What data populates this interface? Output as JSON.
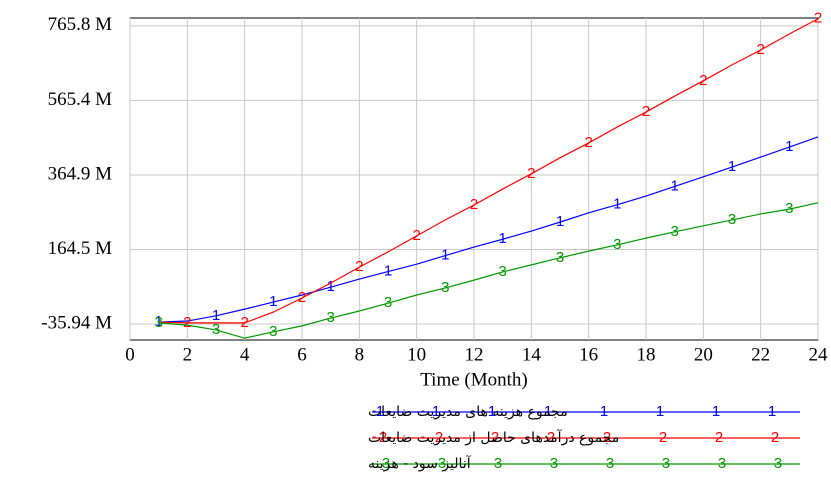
{
  "chart_data": {
    "type": "line",
    "x_label": "Time (Month)",
    "x": [
      1,
      2,
      3,
      4,
      5,
      6,
      7,
      8,
      9,
      10,
      11,
      12,
      13,
      14,
      15,
      16,
      17,
      18,
      19,
      20,
      21,
      22,
      23,
      24
    ],
    "xlim": [
      0,
      24
    ],
    "xticks": [
      0,
      2,
      4,
      6,
      8,
      10,
      12,
      14,
      16,
      18,
      20,
      22,
      24
    ],
    "ylim": [
      -79,
      787
    ],
    "yticks": [
      {
        "value": -35.94,
        "label": "-35.94 M"
      },
      {
        "value": 164.5,
        "label": "164.5 M"
      },
      {
        "value": 364.9,
        "label": "364.9 M"
      },
      {
        "value": 565.4,
        "label": "565.4 M"
      },
      {
        "value": 765.8,
        "label": "765.8 M"
      }
    ],
    "grid": true,
    "series": [
      {
        "name": "مجموع هزینه های مدیریت ضایعات",
        "marker": "1",
        "color": "#0000ff",
        "values": [
          -31,
          -28,
          -14,
          4,
          23,
          42,
          63,
          85,
          105,
          125,
          148,
          171,
          192,
          214,
          238,
          263,
          285,
          308,
          334,
          360,
          386,
          413,
          440,
          467
        ]
      },
      {
        "name": "مجموع درآمدهای حاصل از مدیریت ضایعات",
        "marker": "2",
        "color": "#ff0000",
        "values": [
          -31,
          -33,
          -33,
          -33,
          -4,
          34,
          74,
          117,
          158,
          201,
          244,
          284,
          327,
          368,
          411,
          451,
          494,
          534,
          577,
          618,
          661,
          701,
          744,
          785
        ]
      },
      {
        "name": "آنالیز سود - هزینه",
        "marker": "3",
        "color": "#009900",
        "values": [
          -33,
          -39,
          -52,
          -74,
          -57,
          -41,
          -20,
          -1,
          20,
          42,
          61,
          82,
          104,
          123,
          142,
          160,
          177,
          195,
          212,
          228,
          244,
          260,
          273,
          290
        ]
      }
    ]
  }
}
